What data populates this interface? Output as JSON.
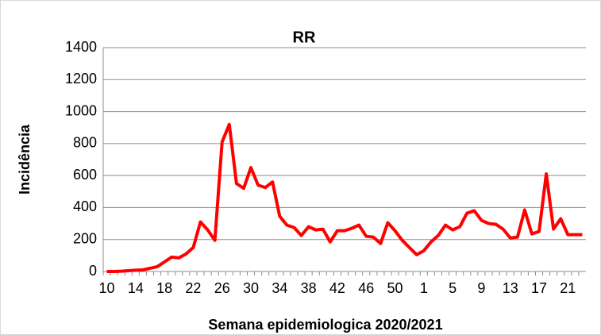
{
  "chart_data": {
    "type": "line",
    "title": "RR",
    "x_label": "Semana epidemiologica 2020/2021",
    "y_label": "Incidência",
    "categories": [
      "10",
      null,
      null,
      null,
      "14",
      null,
      null,
      null,
      "18",
      null,
      null,
      null,
      "22",
      null,
      null,
      null,
      "26",
      null,
      null,
      null,
      "30",
      null,
      null,
      null,
      "34",
      null,
      null,
      null,
      "38",
      null,
      null,
      null,
      "42",
      null,
      null,
      null,
      "46",
      null,
      null,
      null,
      "50",
      null,
      null,
      null,
      "1",
      null,
      null,
      null,
      "5",
      null,
      null,
      null,
      "9",
      null,
      null,
      null,
      "13",
      null,
      null,
      null,
      "17",
      null,
      null,
      null,
      "21",
      null,
      null
    ],
    "series": [
      {
        "name": "RR",
        "color": "#ff0000",
        "values": [
          0,
          0,
          2,
          5,
          8,
          10,
          20,
          30,
          60,
          90,
          85,
          110,
          150,
          310,
          260,
          195,
          810,
          920,
          550,
          520,
          650,
          540,
          525,
          560,
          345,
          290,
          275,
          225,
          280,
          260,
          265,
          185,
          255,
          255,
          270,
          290,
          220,
          215,
          175,
          305,
          255,
          195,
          150,
          105,
          130,
          185,
          225,
          290,
          260,
          280,
          365,
          380,
          320,
          300,
          295,
          265,
          210,
          215,
          385,
          235,
          250,
          610,
          265,
          330,
          230,
          230,
          230
        ]
      }
    ],
    "ylim": [
      0,
      1400
    ],
    "yticks": [
      0,
      200,
      400,
      600,
      800,
      1000,
      1200,
      1400
    ],
    "grid": true
  }
}
